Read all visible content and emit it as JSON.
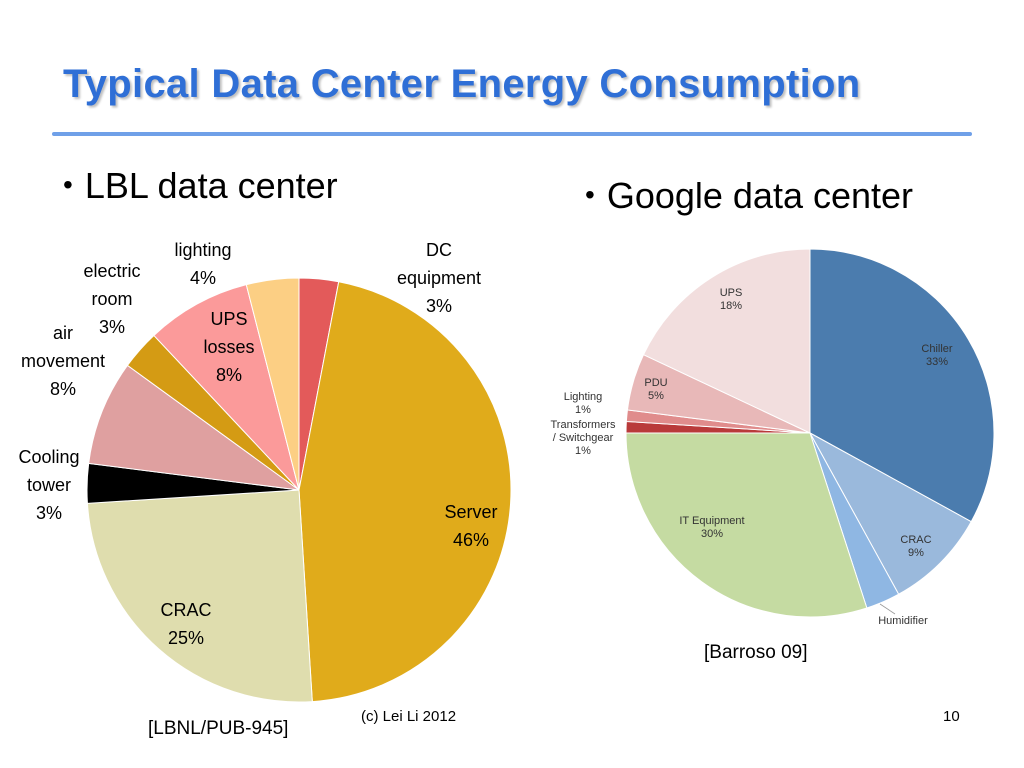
{
  "slide": {
    "title": "Typical Data Center Energy Consumption",
    "bullet_left": "LBL data center",
    "bullet_right": "Google data center",
    "source_left": "[LBNL/PUB-945]",
    "source_right": "[Barroso 09]",
    "footer_center": "(c) Lei Li 2012",
    "page_number": "10",
    "colors": {
      "title": "#2f6fd6",
      "rule": "#6fa0e8"
    }
  },
  "chart_data": [
    {
      "type": "pie",
      "title": "",
      "slices": [
        {
          "label": "DC\nequipment\n3%",
          "category": "DC equipment",
          "value": 3,
          "color": "#e35a5a"
        },
        {
          "label": "Server\n46%",
          "category": "Server",
          "value": 46,
          "color": "#e0ab1b"
        },
        {
          "label": "CRAC\n25%",
          "category": "CRAC",
          "value": 25,
          "color": "#dfddae"
        },
        {
          "label": "Cooling\ntower\n3%",
          "category": "Cooling tower",
          "value": 3,
          "color": "#000000"
        },
        {
          "label": "air\nmovement\n8%",
          "category": "air movement",
          "value": 8,
          "color": "#dfa0a0"
        },
        {
          "label": "electric\nroom\n3%",
          "category": "electric room",
          "value": 3,
          "color": "#d49b14"
        },
        {
          "label": "UPS\nlosses\n8%",
          "category": "UPS losses",
          "value": 8,
          "color": "#fb9a9a"
        },
        {
          "label": "lighting\n4%",
          "category": "lighting",
          "value": 4,
          "color": "#fccf84"
        }
      ]
    },
    {
      "type": "pie",
      "title": "",
      "slices": [
        {
          "label": "Chiller\n33%",
          "category": "Chiller",
          "value": 33,
          "color": "#4b7cae"
        },
        {
          "label": "CRAC\n9%",
          "category": "CRAC",
          "value": 9,
          "color": "#9ab9dc"
        },
        {
          "label": "Humidifier",
          "category": "Humidifier",
          "value": 3,
          "color": "#8fb7e3"
        },
        {
          "label": "IT Equipment\n30%",
          "category": "IT Equipment",
          "value": 30,
          "color": "#c5dba2"
        },
        {
          "label": "Transformers\n/ Switchgear\n1%",
          "category": "Transformers / Switchgear",
          "value": 1,
          "color": "#b93a3a"
        },
        {
          "label": "Lighting\n1%",
          "category": "Lighting",
          "value": 1,
          "color": "#e08c8c"
        },
        {
          "label": "PDU\n5%",
          "category": "PDU",
          "value": 5,
          "color": "#e8b8b8"
        },
        {
          "label": "UPS\n18%",
          "category": "UPS",
          "value": 18,
          "color": "#f2dede"
        }
      ]
    }
  ]
}
